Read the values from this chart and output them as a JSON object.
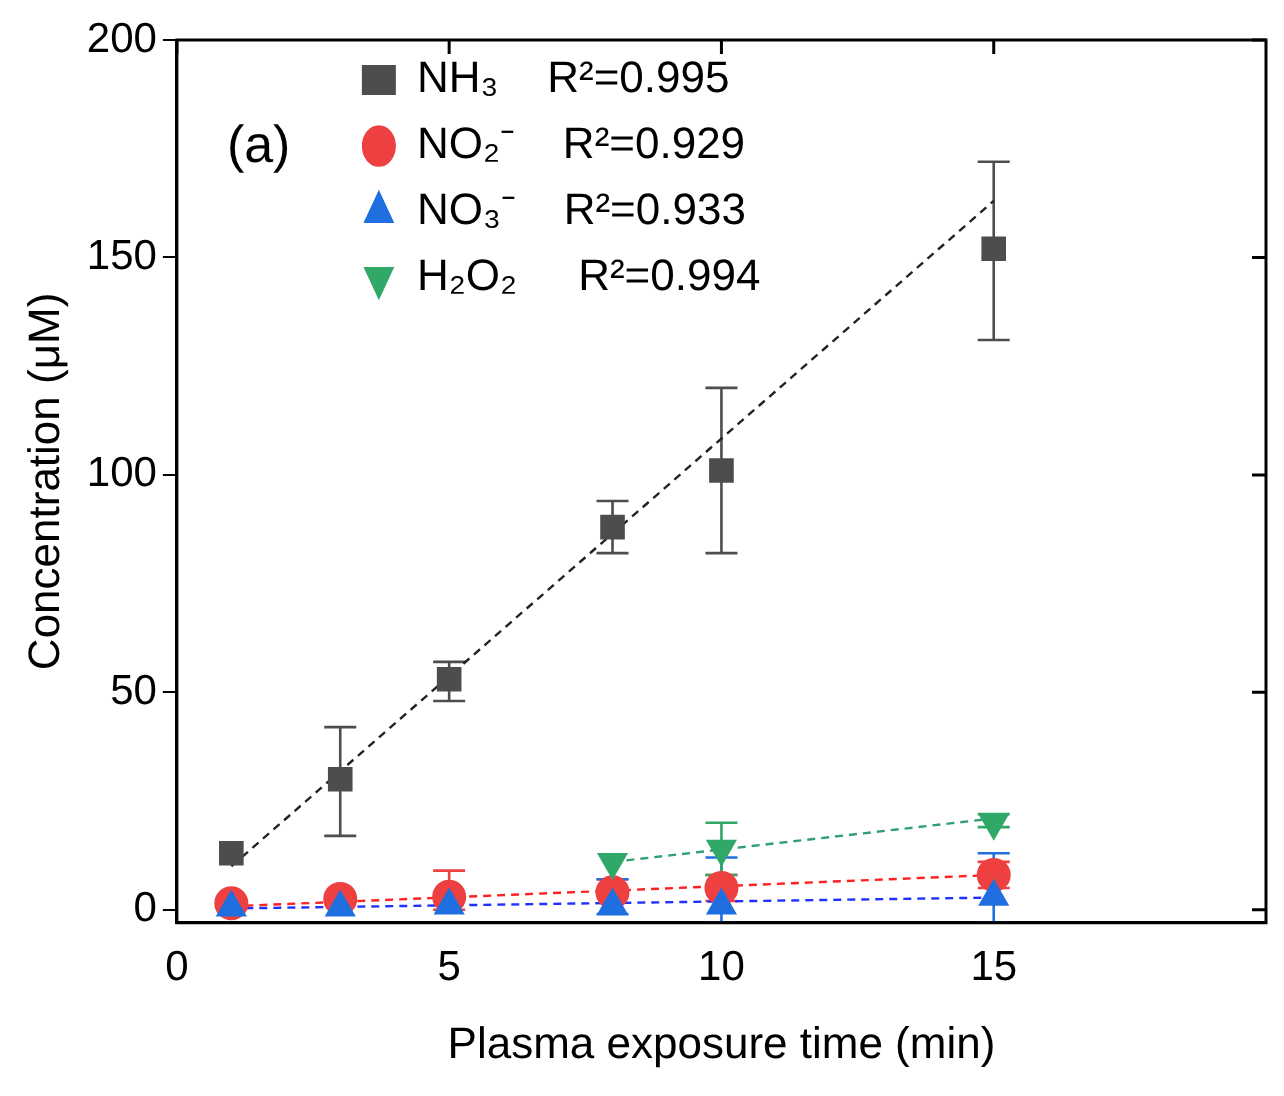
{
  "chart_data": {
    "type": "scatter",
    "xlabel": "Plasma exposure time (min)",
    "ylabel": "Concentration (μM)",
    "xlim": [
      0,
      20
    ],
    "xticks": [
      0,
      5,
      10,
      15
    ],
    "ylim": [
      -3,
      200
    ],
    "yticks": [
      0,
      50,
      100,
      150,
      200
    ],
    "grid": false,
    "legend": "top left",
    "annotations": [
      "(a)"
    ],
    "series": [
      {
        "name": "NH₃    R²=0.995",
        "color": "#4d4d4d",
        "marker": "square",
        "x": [
          1,
          3,
          5,
          8,
          10,
          15
        ],
        "values": [
          13,
          30,
          53,
          88,
          101,
          152
        ],
        "errors": [
          null,
          [
            17,
            42
          ],
          [
            48,
            57
          ],
          [
            82,
            94
          ],
          [
            82,
            120
          ],
          [
            131,
            172
          ]
        ]
      },
      {
        "name": "NO₂⁻    R²=0.929",
        "color": "#ee4040",
        "marker": "circle",
        "x": [
          1,
          3,
          5,
          8,
          10,
          15
        ],
        "values": [
          1.5,
          2.5,
          3,
          4,
          5,
          8
        ],
        "errors": [
          null,
          null,
          [
            0,
            9
          ],
          [
            4,
            7
          ],
          [
            2,
            8
          ],
          [
            5,
            11
          ]
        ]
      },
      {
        "name": "NO₃⁻    R²=0.933",
        "color": "#1f6fe0",
        "marker": "triangle",
        "x": [
          1,
          3,
          5,
          8,
          10,
          15
        ],
        "values": [
          0.5,
          0.5,
          1,
          1,
          1,
          3
        ],
        "errors": [
          null,
          null,
          null,
          [
            -1,
            7
          ],
          [
            -3,
            12
          ],
          [
            -3,
            13
          ]
        ]
      },
      {
        "name": "H₂O₂     R²=0.994",
        "color": "#30a868",
        "marker": "triangle_down",
        "x": [
          8,
          10,
          15
        ],
        "values": [
          11,
          14,
          20
        ],
        "errors": [
          null,
          [
            8,
            20
          ],
          [
            19,
            22
          ]
        ]
      },
      {
        "type": "line",
        "color": "#222222",
        "line_style": "dashed",
        "x": [
          1,
          15
        ],
        "values": [
          10,
          163
        ]
      },
      {
        "type": "line",
        "color": "#ff2020",
        "line_style": "dashed",
        "x": [
          1,
          15
        ],
        "values": [
          0.8,
          8
        ]
      },
      {
        "type": "line",
        "color": "#2030ff",
        "line_style": "dashed",
        "x": [
          1,
          15
        ],
        "values": [
          0.3,
          2.8
        ]
      },
      {
        "type": "line",
        "color": "#30a070",
        "line_style": "dashed",
        "x": [
          8,
          15
        ],
        "values": [
          11,
          21
        ]
      }
    ]
  }
}
